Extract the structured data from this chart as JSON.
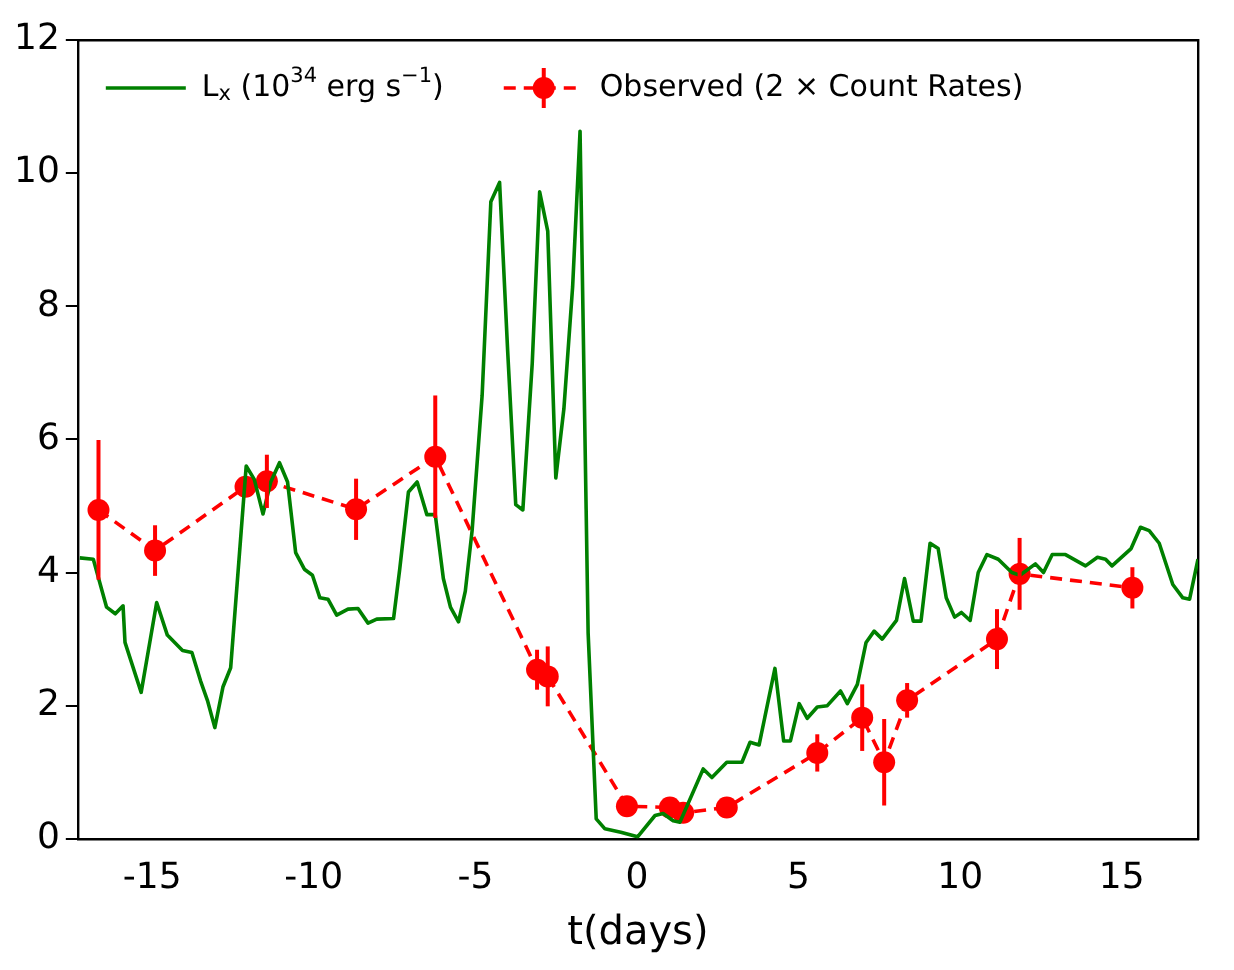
{
  "chart_data": {
    "type": "line",
    "xlabel": "t(days)",
    "xlim": [
      -17.3,
      17.36
    ],
    "xticks": [
      -15,
      -10,
      -5,
      0,
      5,
      10,
      15
    ],
    "ylim": [
      0,
      12
    ],
    "yticks": [
      0,
      2,
      4,
      6,
      8,
      10,
      12
    ],
    "grid": false,
    "legend": "top left",
    "series": [
      {
        "name": "L$_{x}$ (10$^{34}$ erg s$^{−1}$)",
        "color": "#008000",
        "marker": "none",
        "line_style": "solid",
        "x": [
          -17.24,
          -16.82,
          -16.41,
          -16.14,
          -15.9,
          -15.84,
          -15.34,
          -14.86,
          -14.53,
          -14.06,
          -13.77,
          -13.5,
          -13.29,
          -13.06,
          -12.81,
          -12.57,
          -12.09,
          -11.84,
          -11.57,
          -11.33,
          -11.06,
          -10.81,
          -10.56,
          -10.29,
          -10.04,
          -9.81,
          -9.56,
          -9.29,
          -8.94,
          -8.63,
          -8.32,
          -8.05,
          -7.53,
          -7.34,
          -7.07,
          -6.8,
          -6.5,
          -6.24,
          -5.99,
          -5.77,
          -5.52,
          -5.31,
          -5.1,
          -4.79,
          -4.52,
          -4.25,
          -4.0,
          -3.75,
          -3.53,
          -3.24,
          -3.01,
          -2.76,
          -2.51,
          -2.26,
          -1.99,
          -1.76,
          -1.51,
          -1.26,
          -0.99,
          -0.5,
          0.02,
          0.56,
          0.81,
          1.12,
          1.33,
          2.05,
          2.32,
          2.78,
          3.25,
          3.5,
          3.78,
          4.27,
          4.54,
          4.75,
          5.02,
          5.27,
          5.58,
          5.89,
          6.3,
          6.51,
          6.82,
          7.09,
          7.34,
          7.59,
          8.03,
          8.28,
          8.55,
          8.79,
          9.07,
          9.32,
          9.57,
          9.83,
          10.04,
          10.31,
          10.56,
          10.83,
          11.18,
          11.6,
          11.85,
          12.33,
          12.58,
          12.85,
          13.26,
          13.88,
          14.25,
          14.5,
          14.7,
          15.29,
          15.58,
          15.85,
          16.16,
          16.58,
          16.89,
          17.1,
          17.36
        ],
        "values": [
          4.22,
          4.2,
          3.48,
          3.38,
          3.5,
          2.95,
          2.2,
          3.55,
          3.06,
          2.83,
          2.8,
          2.37,
          2.08,
          1.67,
          2.28,
          2.57,
          5.6,
          5.4,
          4.88,
          5.36,
          5.65,
          5.36,
          4.3,
          4.05,
          3.96,
          3.62,
          3.6,
          3.36,
          3.45,
          3.46,
          3.24,
          3.3,
          3.31,
          4.05,
          5.21,
          5.36,
          4.87,
          4.87,
          3.91,
          3.48,
          3.26,
          3.72,
          4.63,
          6.66,
          9.57,
          9.86,
          7.33,
          5.02,
          4.94,
          7.14,
          9.72,
          9.13,
          5.42,
          6.46,
          8.29,
          10.63,
          3.09,
          0.3,
          0.15,
          0.1,
          0.03,
          0.35,
          0.38,
          0.27,
          0.25,
          1.05,
          0.92,
          1.15,
          1.15,
          1.45,
          1.41,
          2.56,
          1.47,
          1.47,
          2.03,
          1.81,
          1.98,
          2.0,
          2.22,
          2.03,
          2.32,
          2.95,
          3.12,
          3.0,
          3.28,
          3.91,
          3.27,
          3.27,
          4.44,
          4.36,
          3.62,
          3.33,
          3.4,
          3.28,
          4.0,
          4.27,
          4.2,
          4.0,
          3.96,
          4.13,
          4.0,
          4.27,
          4.27,
          4.1,
          4.23,
          4.2,
          4.1,
          4.36,
          4.68,
          4.63,
          4.44,
          3.82,
          3.62,
          3.6,
          4.2
        ]
      },
      {
        "name": "Observed (2 × Count Rates)",
        "color": "#ff0000",
        "marker": "circle",
        "line_style": "dashed",
        "x": [
          -16.66,
          -14.91,
          -12.11,
          -11.45,
          -8.69,
          -6.24,
          -3.09,
          -2.76,
          -0.31,
          1.02,
          1.43,
          2.78,
          5.58,
          6.97,
          7.65,
          8.36,
          11.14,
          11.84,
          15.33
        ],
        "values": [
          4.94,
          4.33,
          5.29,
          5.37,
          4.95,
          5.74,
          2.54,
          2.44,
          0.49,
          0.47,
          0.39,
          0.47,
          1.29,
          1.82,
          1.15,
          2.08,
          3.0,
          3.98,
          3.77
        ],
        "errors": [
          1.05,
          0.38,
          null,
          0.4,
          0.46,
          0.92,
          0.3,
          0.45,
          null,
          null,
          null,
          null,
          0.28,
          0.5,
          0.65,
          0.26,
          0.45,
          0.54,
          0.31
        ]
      }
    ]
  }
}
